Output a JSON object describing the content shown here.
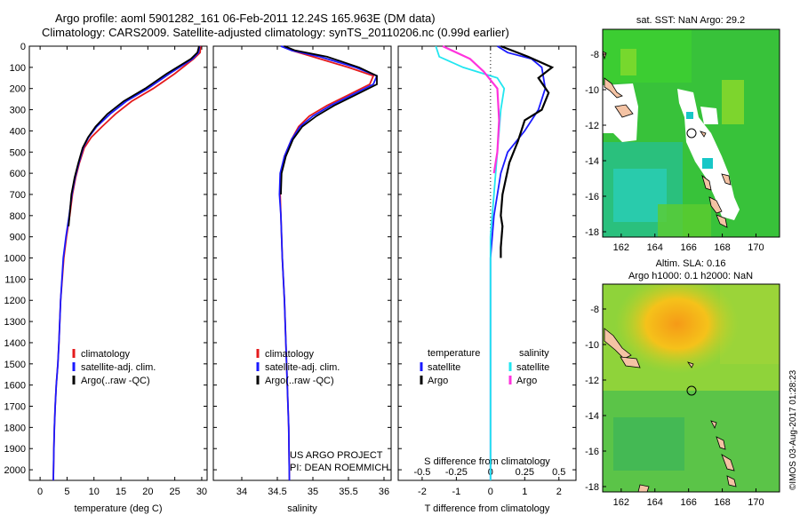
{
  "header": {
    "line1": "Argo profile: aoml 5901282_161 06-Feb-2011 12.24S 165.963E (DM data)",
    "line2": "Climatology: CARS2009. Satellite-adjusted climatology: synTS_20110206.nc (0.99d earlier)"
  },
  "colors": {
    "climatology": "#e41a1c",
    "satellite": "#1a1aff",
    "argo": "#000000",
    "sat_salinity": "#22e6f0",
    "argo_salinity": "#ff33dd"
  },
  "chart_data": [
    {
      "type": "line",
      "name": "temperature",
      "xlabel": "temperature (deg C)",
      "ylabel": "",
      "xlim": [
        -2,
        31
      ],
      "ylim": [
        0,
        2050
      ],
      "xticks": [
        0,
        5,
        10,
        15,
        20,
        25,
        30
      ],
      "yticks": [
        0,
        100,
        200,
        300,
        400,
        500,
        600,
        700,
        800,
        900,
        1000,
        1100,
        1200,
        1300,
        1400,
        1500,
        1600,
        1700,
        1800,
        1900,
        2000
      ],
      "legend": [
        "climatology",
        "satellite-adj. clim.",
        "Argo(..raw -QC)"
      ],
      "series": [
        {
          "name": "climatology",
          "color": "#e41a1c",
          "x": [
            29.8,
            29.7,
            28.5,
            25,
            21,
            17,
            14,
            11.5,
            9.5,
            8.2,
            7.3,
            6.6,
            6.0,
            5.5,
            4.9,
            4.4,
            3.8,
            3.5,
            3.3,
            3.0,
            2.8,
            2.65,
            2.55,
            2.45
          ],
          "depth": [
            0,
            30,
            60,
            130,
            200,
            260,
            320,
            380,
            430,
            480,
            550,
            620,
            700,
            800,
            900,
            1000,
            1200,
            1400,
            1500,
            1600,
            1700,
            1800,
            1900,
            2050
          ]
        },
        {
          "name": "satellite",
          "color": "#1a1aff",
          "x": [
            29.6,
            29.4,
            28.3,
            24,
            20,
            16,
            13,
            10.5,
            9,
            8,
            7.2,
            6.5,
            5.9,
            5.4,
            4.8,
            4.3,
            3.8,
            3.5,
            3.3,
            3.0,
            2.8,
            2.65,
            2.55,
            2.45
          ],
          "depth": [
            0,
            30,
            60,
            130,
            200,
            260,
            320,
            380,
            430,
            480,
            550,
            620,
            700,
            800,
            900,
            1000,
            1200,
            1400,
            1500,
            1600,
            1700,
            1800,
            1900,
            2050
          ]
        },
        {
          "name": "argo",
          "color": "#000000",
          "x": [
            29.5,
            29.2,
            28,
            23.5,
            19.5,
            15.5,
            12.5,
            10.3,
            8.9,
            7.9,
            7.1,
            6.4,
            5.8,
            5.3
          ],
          "depth": [
            0,
            30,
            60,
            130,
            200,
            260,
            320,
            380,
            430,
            480,
            550,
            620,
            700,
            850
          ]
        }
      ]
    },
    {
      "type": "line",
      "name": "salinity",
      "xlabel": "salinity",
      "xlim": [
        33.6,
        36.1
      ],
      "ylim": [
        0,
        2050
      ],
      "xticks": [
        34,
        34.5,
        35,
        35.5,
        36
      ],
      "legend": [
        "climatology",
        "satellite-adj. clim.",
        "Argo(..raw -QC)"
      ],
      "annotations": [
        "US ARGO PROJECT",
        "PI: DEAN ROEMMICH"
      ],
      "series": [
        {
          "name": "climatology",
          "color": "#e41a1c",
          "x": [
            34.6,
            34.7,
            35.0,
            35.5,
            35.85,
            35.8,
            35.5,
            35.2,
            34.95,
            34.8,
            34.7,
            34.6,
            34.55,
            34.54,
            34.55,
            34.57,
            34.6,
            34.62,
            34.64,
            34.66,
            34.67
          ],
          "depth": [
            0,
            20,
            50,
            100,
            140,
            180,
            230,
            280,
            330,
            380,
            440,
            520,
            600,
            700,
            800,
            1000,
            1200,
            1400,
            1600,
            1800,
            2050
          ]
        },
        {
          "name": "satellite",
          "color": "#1a1aff",
          "x": [
            34.55,
            34.7,
            35.1,
            35.6,
            35.9,
            35.85,
            35.55,
            35.25,
            35.0,
            34.82,
            34.7,
            34.6,
            34.54,
            34.53,
            34.55,
            34.57,
            34.6,
            34.62,
            34.64,
            34.66,
            34.67
          ],
          "depth": [
            0,
            20,
            50,
            100,
            140,
            180,
            230,
            280,
            330,
            380,
            440,
            520,
            600,
            700,
            800,
            1000,
            1200,
            1400,
            1600,
            1800,
            2050
          ]
        },
        {
          "name": "argo",
          "color": "#000000",
          "x": [
            34.6,
            34.75,
            35.2,
            35.65,
            35.9,
            35.9,
            35.6,
            35.3,
            35.05,
            34.85,
            34.72,
            34.62,
            34.56,
            34.55
          ],
          "depth": [
            0,
            20,
            50,
            100,
            140,
            180,
            230,
            280,
            330,
            380,
            440,
            520,
            600,
            700
          ]
        }
      ]
    },
    {
      "type": "line",
      "name": "difference",
      "xlabel": "T difference from climatology",
      "x2label": "S difference from climatology",
      "xlim": [
        -2.7,
        2.5
      ],
      "ylim": [
        0,
        2050
      ],
      "xticks": [
        -2,
        -1,
        0,
        1,
        2
      ],
      "x2ticks": [
        -0.5,
        -0.25,
        0,
        0.25,
        0.5
      ],
      "legend_headers": [
        "temperature",
        "salinity"
      ],
      "legend": [
        "satellite",
        "Argo",
        "satellite",
        "Argo"
      ],
      "series": [
        {
          "name": "T satellite",
          "color": "#1a1aff",
          "x": [
            0.2,
            0.5,
            1.2,
            1.5,
            1.6,
            1.4,
            1.0,
            0.5,
            0.3,
            0.1,
            0.0,
            0.0,
            0.0,
            0.0,
            0.0
          ],
          "depth": [
            0,
            30,
            60,
            100,
            200,
            300,
            400,
            500,
            600,
            800,
            1000,
            1200,
            1500,
            1800,
            2050
          ]
        },
        {
          "name": "T argo",
          "color": "#000000",
          "x": [
            0.3,
            1.1,
            1.8,
            1.4,
            1.7,
            1.5,
            1.0,
            0.8,
            0.55,
            0.35,
            0.3,
            0.35,
            0.3,
            0.3
          ],
          "depth": [
            0,
            50,
            100,
            150,
            220,
            300,
            350,
            450,
            550,
            700,
            800,
            850,
            950,
            1000
          ]
        },
        {
          "name": "S satellite",
          "color": "#22e6f0",
          "x": [
            -1.6,
            -1.5,
            -0.8,
            0.2,
            0.4,
            0.3,
            0.2,
            0.1,
            0.0,
            0.0,
            0.0,
            0.0
          ],
          "depth": [
            0,
            50,
            100,
            150,
            200,
            300,
            500,
            700,
            900,
            1200,
            1600,
            2050
          ]
        },
        {
          "name": "S argo",
          "color": "#ff33dd",
          "x": [
            -1.4,
            -0.6,
            -0.2,
            0.2,
            0.25,
            0.2,
            0.1
          ],
          "depth": [
            0,
            60,
            120,
            200,
            350,
            500,
            600
          ]
        }
      ]
    },
    {
      "type": "heatmap",
      "name": "sst_map",
      "title": "sat. SST: NaN Argo: 29.2",
      "xticks": [
        162,
        164,
        166,
        168,
        170
      ],
      "yticks": [
        -8,
        -10,
        -12,
        -14,
        -16,
        -18
      ]
    },
    {
      "type": "heatmap",
      "name": "sla_map",
      "title": "Altim. SLA: 0.16",
      "subtitle": "Argo h1000: 0.1 h2000: NaN",
      "xticks": [
        162,
        164,
        166,
        168,
        170
      ],
      "yticks": [
        -8,
        -10,
        -12,
        -14,
        -16,
        -18
      ]
    }
  ],
  "footer": {
    "stamp": "©IMOS 03-Aug-2017 01:28:23"
  }
}
